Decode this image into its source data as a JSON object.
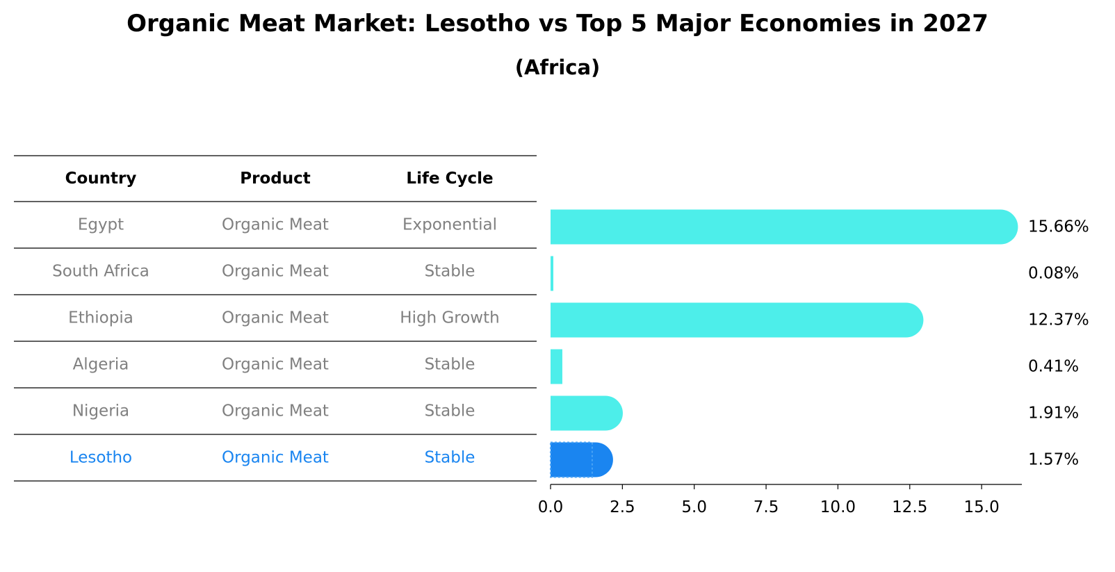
{
  "chart_data": {
    "type": "table",
    "title": "Organic Meat Market: Lesotho vs Top 5 Major Economies in 2027",
    "subtitle": "(Africa)",
    "columns": [
      "Country",
      "Product",
      "Life Cycle"
    ],
    "rows": [
      {
        "country": "Egypt",
        "product": "Organic Meat",
        "life_cycle": "Exponential",
        "value": 15.66,
        "label": "15.66%"
      },
      {
        "country": "South Africa",
        "product": "Organic Meat",
        "life_cycle": "Stable",
        "value": 0.08,
        "label": "0.08%"
      },
      {
        "country": "Ethiopia",
        "product": "Organic Meat",
        "life_cycle": "High Growth",
        "value": 12.37,
        "label": "12.37%"
      },
      {
        "country": "Algeria",
        "product": "Organic Meat",
        "life_cycle": "Stable",
        "value": 0.41,
        "label": "0.41%"
      },
      {
        "country": "Nigeria",
        "product": "Organic Meat",
        "life_cycle": "Stable",
        "value": 1.91,
        "label": "1.91%"
      },
      {
        "country": "Lesotho",
        "product": "Organic Meat",
        "life_cycle": "Stable",
        "value": 1.57,
        "label": "1.57%",
        "highlight": true
      }
    ],
    "bar_chart": {
      "type": "bar",
      "orientation": "horizontal",
      "xlim": [
        0,
        16.4
      ],
      "xticks": [
        "0.0",
        "2.5",
        "5.0",
        "7.5",
        "10.0",
        "12.5",
        "15.0"
      ],
      "grid": false
    },
    "colors": {
      "bar": "#4DEEEA",
      "highlight_bar": "#1A85F0",
      "row_text": "#808080",
      "highlight_text": "#1A85F0",
      "header_text": "#000000"
    }
  }
}
